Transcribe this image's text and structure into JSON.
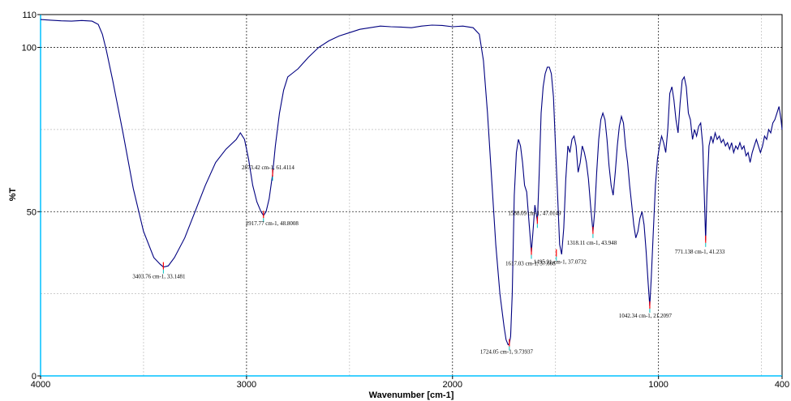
{
  "chart_data": {
    "type": "line",
    "xlabel": "Wavenumber [cm-1]",
    "ylabel": "%T",
    "xlim": [
      4000,
      400
    ],
    "ylim": [
      0,
      110
    ],
    "x_reversed": true,
    "x_ticks": [
      4000,
      3000,
      2000,
      1000,
      400
    ],
    "x_minor_ticks": [
      3500,
      2500,
      1500,
      500
    ],
    "y_ticks": [
      0,
      50,
      100,
      110
    ],
    "y_minor_ticks": [
      25,
      75
    ],
    "grid": true,
    "colors": {
      "line": "#000080",
      "peak_marker": "#ff0000",
      "label_leader": "#00bfbf",
      "left_axis": "#00c0ff",
      "bottom_axis": "#00c0ff"
    },
    "series": [
      {
        "x": [
          4000,
          3950,
          3900,
          3850,
          3800,
          3750,
          3720,
          3700,
          3680,
          3650,
          3600,
          3550,
          3500,
          3450,
          3420,
          3403.76,
          3380,
          3350,
          3300,
          3250,
          3200,
          3150,
          3100,
          3050,
          3030,
          3010,
          2990,
          2970,
          2950,
          2930,
          2917.77,
          2905,
          2890,
          2873.42,
          2860,
          2840,
          2820,
          2800,
          2780,
          2750,
          2700,
          2650,
          2600,
          2550,
          2500,
          2450,
          2400,
          2350,
          2300,
          2250,
          2200,
          2150,
          2100,
          2050,
          2000,
          1950,
          1900,
          1870,
          1850,
          1830,
          1810,
          1790,
          1770,
          1750,
          1740,
          1730,
          1724.05,
          1718,
          1710,
          1700,
          1690,
          1680,
          1670,
          1660,
          1650,
          1640,
          1630,
          1617.03,
          1608,
          1600,
          1595,
          1588.09,
          1580,
          1570,
          1560,
          1550,
          1540,
          1530,
          1520,
          1510,
          1500,
          1490,
          1480,
          1470,
          1460,
          1450,
          1440,
          1430,
          1420,
          1410,
          1400,
          1390,
          1380,
          1370,
          1360,
          1350,
          1340,
          1330,
          1318.11,
          1310,
          1300,
          1290,
          1280,
          1270,
          1260,
          1250,
          1240,
          1230,
          1220,
          1210,
          1200,
          1190,
          1180,
          1170,
          1160,
          1150,
          1140,
          1130,
          1120,
          1110,
          1100,
          1090,
          1080,
          1070,
          1060,
          1050,
          1042.34,
          1035,
          1025,
          1015,
          1005,
          995,
          985,
          975,
          965,
          955,
          945,
          935,
          925,
          915,
          905,
          895,
          885,
          875,
          865,
          855,
          845,
          835,
          825,
          815,
          805,
          795,
          785,
          771.138,
          765,
          755,
          745,
          735,
          725,
          715,
          705,
          695,
          685,
          675,
          665,
          655,
          645,
          635,
          625,
          615,
          605,
          595,
          585,
          575,
          565,
          555,
          545,
          535,
          525,
          515,
          505,
          495,
          485,
          475,
          465,
          455,
          445,
          435,
          425,
          415,
          405,
          400
        ],
        "y": [
          108.5,
          108.3,
          108.1,
          108.0,
          108.2,
          108.0,
          107.0,
          104.0,
          99.0,
          90.0,
          74.0,
          57.0,
          44.0,
          36.0,
          34.0,
          33.14,
          33.5,
          36.0,
          42.0,
          50.0,
          58.0,
          65.0,
          69.0,
          72.0,
          74.0,
          72.0,
          66.0,
          58.0,
          53.0,
          50.0,
          48.8,
          50.0,
          54.0,
          61.4,
          70.0,
          80.0,
          87.0,
          91.0,
          92.0,
          93.5,
          97.0,
          100.0,
          102.0,
          103.5,
          104.5,
          105.5,
          106.0,
          106.5,
          106.3,
          106.2,
          106.0,
          106.5,
          106.8,
          106.7,
          106.3,
          106.5,
          106.0,
          104.0,
          96.0,
          80.0,
          60.0,
          40.0,
          25.0,
          15.0,
          11.0,
          9.5,
          9.74,
          12.0,
          25.0,
          55.0,
          68.0,
          72.0,
          70.0,
          65.0,
          58.0,
          56.0,
          48.0,
          37.6,
          45.0,
          52.0,
          50.0,
          47.0,
          60.0,
          80.0,
          88.0,
          92.0,
          94.0,
          94.0,
          92.0,
          85.0,
          70.0,
          55.0,
          40.0,
          37.0,
          45.0,
          60.0,
          70.0,
          68.0,
          72.0,
          73.0,
          70.0,
          62.0,
          65.0,
          70.0,
          68.0,
          65.0,
          60.0,
          52.0,
          43.9,
          50.0,
          62.0,
          72.0,
          78.0,
          80.0,
          78.0,
          72.0,
          64.0,
          58.0,
          55.0,
          62.0,
          70.0,
          76.0,
          79.0,
          77.0,
          70.0,
          65.0,
          58.0,
          52.0,
          46.0,
          42.0,
          44.0,
          48.0,
          50.0,
          46.0,
          38.0,
          28.0,
          21.21,
          30.0,
          44.0,
          58.0,
          66.0,
          70.0,
          73.0,
          71.0,
          68.0,
          75.0,
          86.0,
          88.0,
          84.0,
          78.0,
          74.0,
          83.0,
          90.0,
          91.0,
          88.0,
          80.0,
          78.0,
          72.0,
          75.0,
          73.0,
          76.0,
          77.0,
          70.0,
          41.23,
          55.0,
          70.0,
          73.0,
          71.0,
          74.0,
          72.0,
          73.0,
          71.0,
          72.0,
          70.0,
          71.0,
          69.0,
          71.0,
          68.0,
          70.0,
          69.0,
          71.0,
          69.0,
          70.0,
          67.0,
          68.0,
          65.0,
          68.0,
          70.0,
          72.0,
          70.0,
          68.0,
          70.0,
          73.0,
          72.0,
          75.0,
          74.0,
          77.0,
          78.0,
          80.0,
          82.0,
          78.0,
          75.0
        ]
      }
    ],
    "peaks": [
      {
        "x": 3403.76,
        "y": 33.1481,
        "label": "3403.76 cm-1, 33.1481"
      },
      {
        "x": 2917.77,
        "y": 48.8008,
        "label": "2917.77 cm-1, 48.8008"
      },
      {
        "x": 2873.42,
        "y": 61.4114,
        "label": "2873.42 cm-1, 61.4114"
      },
      {
        "x": 1724.05,
        "y": 9.73937,
        "label": "1724.05 cm-1, 9.73937"
      },
      {
        "x": 1617.03,
        "y": 37.608,
        "label": "1617.03 cm-1, 37.608"
      },
      {
        "x": 1588.09,
        "y": 47.0149,
        "label": "1588.09 cm-1, 47.0149"
      },
      {
        "x": 1495.91,
        "y": 37.0732,
        "label": "1495.91 cm-1, 37.0732"
      },
      {
        "x": 1318.11,
        "y": 43.948,
        "label": "1318.11 cm-1, 43.948"
      },
      {
        "x": 1042.34,
        "y": 21.2097,
        "label": "1042.34 cm-1, 21.2097"
      },
      {
        "x": 771.138,
        "y": 41.233,
        "label": "771.138 cm-1, 41.233"
      }
    ]
  }
}
